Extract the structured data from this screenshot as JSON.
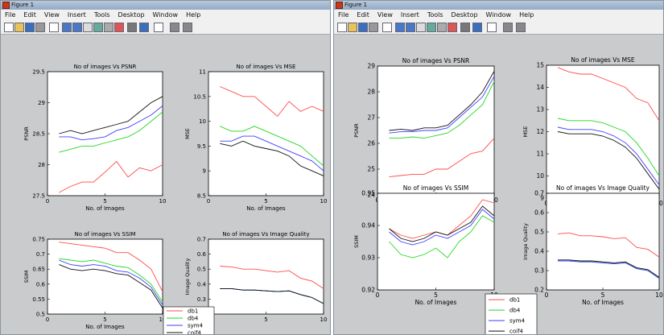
{
  "windows": [
    {
      "title": "Figure 1",
      "menu": [
        "File",
        "Edit",
        "View",
        "Insert",
        "Tools",
        "Desktop",
        "Window",
        "Help"
      ]
    },
    {
      "title": "Figure 1",
      "menu": [
        "File",
        "Edit",
        "View",
        "Insert",
        "Tools",
        "Desktop",
        "Window",
        "Help"
      ]
    }
  ],
  "toolbar_icons": [
    "new-figure-icon",
    "open-icon",
    "save-icon",
    "print-icon",
    "pointer-icon",
    "zoom-in-icon",
    "zoom-out-icon",
    "pan-icon",
    "rotate-icon",
    "data-cursor-icon",
    "brush-icon",
    "link-icon",
    "colorbar-icon",
    "legend-icon",
    "hide-tools-icon",
    "show-tools-icon"
  ],
  "colors": {
    "db1": "#ff4b4b",
    "db4": "#22d822",
    "sym4": "#3f3fff",
    "coif4": "#111111"
  },
  "chart_data": [
    {
      "type": "line",
      "title": "No of images Vs PSNR",
      "xlabel": "No. of Images",
      "ylabel": "PSNR",
      "x": [
        1,
        2,
        3,
        4,
        5,
        6,
        7,
        8,
        9,
        10
      ],
      "xlim": [
        0,
        10
      ],
      "ylim": [
        27.5,
        29.5
      ],
      "xticks": [
        "0",
        "5",
        "10"
      ],
      "yticks": [
        "27.5",
        "28",
        "28.5",
        "29",
        "29.5"
      ],
      "series": [
        {
          "name": "db1",
          "values": [
            27.55,
            27.65,
            27.72,
            27.72,
            27.88,
            28.05,
            27.8,
            27.95,
            27.9,
            28.0
          ]
        },
        {
          "name": "db4",
          "values": [
            28.2,
            28.25,
            28.3,
            28.3,
            28.35,
            28.4,
            28.45,
            28.55,
            28.7,
            28.85
          ]
        },
        {
          "name": "sym4",
          "values": [
            28.45,
            28.45,
            28.4,
            28.42,
            28.45,
            28.55,
            28.6,
            28.7,
            28.8,
            28.95
          ]
        },
        {
          "name": "coif4",
          "values": [
            28.5,
            28.55,
            28.5,
            28.55,
            28.6,
            28.65,
            28.7,
            28.85,
            29.0,
            29.1
          ]
        }
      ]
    },
    {
      "type": "line",
      "title": "No of images Vs MSE",
      "xlabel": "No. of Images",
      "ylabel": "MSE",
      "x": [
        1,
        2,
        3,
        4,
        5,
        6,
        7,
        8,
        9,
        10
      ],
      "xlim": [
        0,
        10
      ],
      "ylim": [
        8.5,
        11
      ],
      "xticks": [
        "0",
        "5",
        "10"
      ],
      "yticks": [
        "8.5",
        "9",
        "9.5",
        "10",
        "10.5",
        "11"
      ],
      "series": [
        {
          "name": "db1",
          "values": [
            10.7,
            10.6,
            10.5,
            10.5,
            10.3,
            10.1,
            10.4,
            10.2,
            10.3,
            10.2
          ]
        },
        {
          "name": "db4",
          "values": [
            9.9,
            9.8,
            9.8,
            9.9,
            9.8,
            9.7,
            9.6,
            9.5,
            9.3,
            9.1
          ]
        },
        {
          "name": "sym4",
          "values": [
            9.6,
            9.6,
            9.7,
            9.7,
            9.6,
            9.5,
            9.4,
            9.3,
            9.2,
            9.0
          ]
        },
        {
          "name": "coif4",
          "values": [
            9.55,
            9.5,
            9.6,
            9.5,
            9.45,
            9.4,
            9.3,
            9.1,
            9.0,
            8.9
          ]
        }
      ]
    },
    {
      "type": "line",
      "title": "No of images Vs SSIM",
      "xlabel": "No. of Images",
      "ylabel": "SSIM",
      "x": [
        1,
        2,
        3,
        4,
        5,
        6,
        7,
        8,
        9,
        10
      ],
      "xlim": [
        0,
        10
      ],
      "ylim": [
        0.5,
        0.75
      ],
      "xticks": [
        "0",
        "5",
        "10"
      ],
      "yticks": [
        "0.5",
        "0.55",
        "0.6",
        "0.65",
        "0.7",
        "0.75"
      ],
      "series": [
        {
          "name": "db1",
          "values": [
            0.74,
            0.735,
            0.73,
            0.725,
            0.72,
            0.705,
            0.705,
            0.68,
            0.65,
            0.575
          ]
        },
        {
          "name": "db4",
          "values": [
            0.685,
            0.68,
            0.675,
            0.68,
            0.67,
            0.66,
            0.655,
            0.63,
            0.6,
            0.54
          ]
        },
        {
          "name": "sym4",
          "values": [
            0.68,
            0.665,
            0.66,
            0.665,
            0.66,
            0.645,
            0.64,
            0.62,
            0.59,
            0.53
          ]
        },
        {
          "name": "coif4",
          "values": [
            0.665,
            0.65,
            0.645,
            0.65,
            0.645,
            0.635,
            0.63,
            0.605,
            0.58,
            0.52
          ]
        }
      ]
    },
    {
      "type": "line",
      "title": "No of images Vs Image Quality",
      "xlabel": "",
      "ylabel": "Image Quality",
      "x": [
        1,
        2,
        3,
        4,
        5,
        6,
        7,
        8,
        9,
        10
      ],
      "xlim": [
        0,
        10
      ],
      "ylim": [
        0.2,
        0.7
      ],
      "xticks": [
        "0",
        "5",
        "10"
      ],
      "yticks": [
        "0.2",
        "0.3",
        "0.4",
        "0.5",
        "0.6",
        "0.7"
      ],
      "series": [
        {
          "name": "db1",
          "values": [
            0.52,
            0.515,
            0.5,
            0.5,
            0.49,
            0.48,
            0.49,
            0.44,
            0.42,
            0.37
          ]
        },
        {
          "name": "db4",
          "values": [
            0.37,
            0.37,
            0.36,
            0.36,
            0.355,
            0.35,
            0.355,
            0.33,
            0.31,
            0.27
          ]
        },
        {
          "name": "sym4",
          "values": [
            0.37,
            0.37,
            0.36,
            0.36,
            0.355,
            0.35,
            0.355,
            0.33,
            0.31,
            0.27
          ]
        },
        {
          "name": "coif4",
          "values": [
            0.37,
            0.37,
            0.36,
            0.36,
            0.355,
            0.35,
            0.355,
            0.33,
            0.31,
            0.27
          ]
        }
      ]
    },
    {
      "type": "line",
      "title": "No of images Vs PSNR",
      "xlabel": "No. of Images",
      "ylabel": "PSNR",
      "x": [
        1,
        2,
        3,
        4,
        5,
        6,
        7,
        8,
        9,
        10
      ],
      "xlim": [
        0,
        10
      ],
      "ylim": [
        24,
        29
      ],
      "xticks": [
        "0",
        "5",
        "10"
      ],
      "yticks": [
        "24",
        "25",
        "26",
        "27",
        "28",
        "29"
      ],
      "series": [
        {
          "name": "db1",
          "values": [
            24.7,
            24.75,
            24.8,
            24.8,
            25.0,
            25.0,
            25.3,
            25.6,
            25.7,
            26.2
          ]
        },
        {
          "name": "db4",
          "values": [
            26.2,
            26.2,
            26.25,
            26.2,
            26.3,
            26.4,
            26.7,
            27.1,
            27.5,
            28.4
          ]
        },
        {
          "name": "sym4",
          "values": [
            26.4,
            26.45,
            26.45,
            26.5,
            26.5,
            26.6,
            27.0,
            27.4,
            27.8,
            28.6
          ]
        },
        {
          "name": "coif4",
          "values": [
            26.5,
            26.55,
            26.5,
            26.6,
            26.6,
            26.7,
            27.1,
            27.5,
            28.0,
            28.8
          ]
        }
      ]
    },
    {
      "type": "line",
      "title": "No of images Vs MSE",
      "xlabel": "No. of Images",
      "ylabel": "MSE",
      "x": [
        1,
        2,
        3,
        4,
        5,
        6,
        7,
        8,
        9,
        10
      ],
      "xlim": [
        0,
        10
      ],
      "ylim": [
        9,
        15
      ],
      "xticks": [
        "0",
        "5",
        "10"
      ],
      "yticks": [
        "9",
        "10",
        "11",
        "12",
        "13",
        "14",
        "15"
      ],
      "series": [
        {
          "name": "db1",
          "values": [
            14.9,
            14.7,
            14.6,
            14.6,
            14.4,
            14.2,
            14.0,
            13.5,
            13.3,
            12.5
          ]
        },
        {
          "name": "db4",
          "values": [
            12.6,
            12.5,
            12.5,
            12.5,
            12.4,
            12.2,
            12.0,
            11.5,
            10.8,
            10.0
          ]
        },
        {
          "name": "sym4",
          "values": [
            12.2,
            12.1,
            12.1,
            12.1,
            12.0,
            11.8,
            11.5,
            11.0,
            10.3,
            9.6
          ]
        },
        {
          "name": "coif4",
          "values": [
            12.0,
            11.9,
            11.9,
            11.9,
            11.8,
            11.6,
            11.3,
            10.8,
            10.1,
            9.4
          ]
        }
      ]
    },
    {
      "type": "line",
      "title": "No of images Vs SSIM",
      "xlabel": "No. of Images",
      "ylabel": "SSIM",
      "x": [
        1,
        2,
        3,
        4,
        5,
        6,
        7,
        8,
        9,
        10
      ],
      "xlim": [
        0,
        10
      ],
      "ylim": [
        0.92,
        0.95
      ],
      "xticks": [
        "0",
        "5",
        "10"
      ],
      "yticks": [
        "0.92",
        "0.93",
        "0.94",
        "0.95"
      ],
      "series": [
        {
          "name": "db1",
          "values": [
            0.939,
            0.937,
            0.936,
            0.937,
            0.938,
            0.937,
            0.94,
            0.943,
            0.948,
            0.947
          ]
        },
        {
          "name": "db4",
          "values": [
            0.935,
            0.931,
            0.93,
            0.931,
            0.933,
            0.93,
            0.935,
            0.938,
            0.943,
            0.941
          ]
        },
        {
          "name": "sym4",
          "values": [
            0.938,
            0.935,
            0.934,
            0.935,
            0.937,
            0.936,
            0.938,
            0.94,
            0.945,
            0.942
          ]
        },
        {
          "name": "coif4",
          "values": [
            0.939,
            0.936,
            0.935,
            0.936,
            0.938,
            0.937,
            0.939,
            0.941,
            0.946,
            0.943
          ]
        }
      ]
    },
    {
      "type": "line",
      "title": "No of images Vs Image Quality",
      "xlabel": "No. of Images",
      "ylabel": "Image Quality",
      "x": [
        1,
        2,
        3,
        4,
        5,
        6,
        7,
        8,
        9,
        10
      ],
      "xlim": [
        0,
        10
      ],
      "ylim": [
        0.2,
        0.7
      ],
      "xticks": [
        "0",
        "5",
        "10"
      ],
      "yticks": [
        "0.2",
        "0.3",
        "0.4",
        "0.5",
        "0.6",
        "0.7"
      ],
      "series": [
        {
          "name": "db1",
          "values": [
            0.49,
            0.495,
            0.48,
            0.48,
            0.475,
            0.465,
            0.47,
            0.42,
            0.41,
            0.37
          ]
        },
        {
          "name": "db4",
          "values": [
            0.35,
            0.35,
            0.345,
            0.345,
            0.34,
            0.335,
            0.34,
            0.31,
            0.3,
            0.26
          ]
        },
        {
          "name": "sym4",
          "values": [
            0.35,
            0.35,
            0.345,
            0.345,
            0.34,
            0.335,
            0.34,
            0.31,
            0.3,
            0.26
          ]
        },
        {
          "name": "coif4",
          "values": [
            0.355,
            0.355,
            0.35,
            0.35,
            0.345,
            0.34,
            0.345,
            0.315,
            0.305,
            0.265
          ]
        }
      ]
    }
  ],
  "legend": [
    "db1",
    "db4",
    "sym4",
    "coif4"
  ]
}
